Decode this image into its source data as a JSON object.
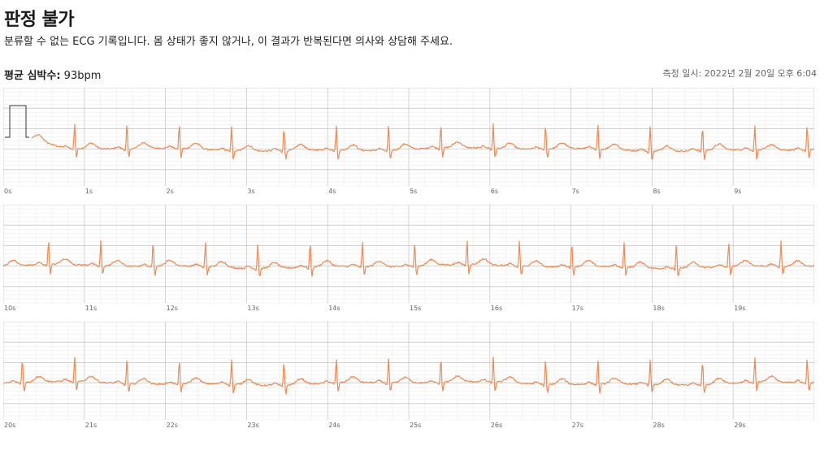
{
  "header": {
    "title": "판정 불가",
    "subtitle": "분류할 수 없는 ECG 기록입니다. 몸 상태가 좋지 않거나, 이 결과가 반복된다면 의사와 상담해 주세요.",
    "avg_label": "평균 심박수:",
    "avg_value": "93bpm",
    "measured_label": "측정 일시:",
    "measured_value": "2022년 2월 20일 오후 6:04"
  },
  "colors": {
    "trace": "#ee8a55",
    "grid_minor": "#e9e9e9",
    "grid_major": "#c8c8c8",
    "calibration": "#333333"
  },
  "chart_data": {
    "type": "line",
    "title": "",
    "xlabel": "",
    "ylabel": "",
    "x_unit": "s",
    "grid": true,
    "strips": [
      {
        "name": "",
        "start": 0,
        "end": 10,
        "tick_labels": [
          "0s",
          "1s",
          "2s",
          "3s",
          "4s",
          "5s",
          "6s",
          "7s",
          "8s",
          "9s"
        ]
      },
      {
        "name": "",
        "start": 10,
        "end": 20,
        "tick_labels": [
          "10s",
          "11s",
          "12s",
          "13s",
          "14s",
          "15s",
          "16s",
          "17s",
          "18s",
          "19s"
        ]
      },
      {
        "name": "",
        "start": 20,
        "end": 30,
        "tick_labels": [
          "20s",
          "21s",
          "22s",
          "23s",
          "24s",
          "25s",
          "26s",
          "27s",
          "28s",
          "29s"
        ]
      }
    ],
    "heart_rate_bpm": 93
  }
}
